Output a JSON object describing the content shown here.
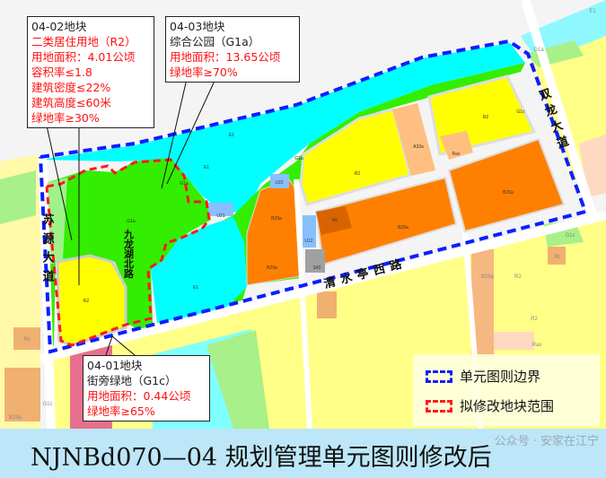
{
  "callouts": {
    "block_04_02": {
      "title": "04-02地块",
      "lines": [
        "二类居住用地（R2）",
        "用地面积：4.01公顷",
        "容积率≤1.8",
        "建筑密度≤22%",
        "建筑高度≤60米",
        "绿地率≥30%"
      ]
    },
    "block_04_03": {
      "title": "04-03地块",
      "subtitle": "综合公园（G1a）",
      "lines": [
        "用地面积：13.65公顷",
        "绿地率≥70%"
      ]
    },
    "block_04_01": {
      "title": "04-01地块",
      "subtitle": "街旁绿地（G1c）",
      "lines": [
        "用地面积：0.44公顷",
        "绿地率≥65%"
      ]
    }
  },
  "roads": {
    "suyuan": "苏源大道",
    "jiulonghu": "九龙湖北路",
    "qingshuiting": "清水亭西路",
    "shuanglong": "双龙大道"
  },
  "parcels": [
    "E1",
    "E1",
    "E1",
    "G1a",
    "G1a",
    "G1a",
    "R2",
    "U21",
    "U22",
    "B29a",
    "B29a",
    "B29a",
    "B29a",
    "Rc",
    "U12",
    "S42",
    "R2",
    "A33a",
    "Rax",
    "R2",
    "G1c",
    "G1c",
    "Rc",
    "Rc",
    "B29a",
    "R2",
    "R2",
    "Rax",
    "B29a",
    "G1c",
    "G1a",
    "E1"
  ],
  "legend": {
    "unit_boundary": "单元图则边界",
    "modified_range": "拟修改地块范围"
  },
  "colors": {
    "unit_boundary": "#0a1eff",
    "modified_range": "#ff1a1a",
    "water": "#00ffff",
    "park": "#33ee00",
    "residential": "#ffff00",
    "commercial": "#ff8000"
  },
  "banner": {
    "title": "NJNBd070—04 规划管理单元图则修改后",
    "watermark": "公众号 · 安家在江宁"
  }
}
